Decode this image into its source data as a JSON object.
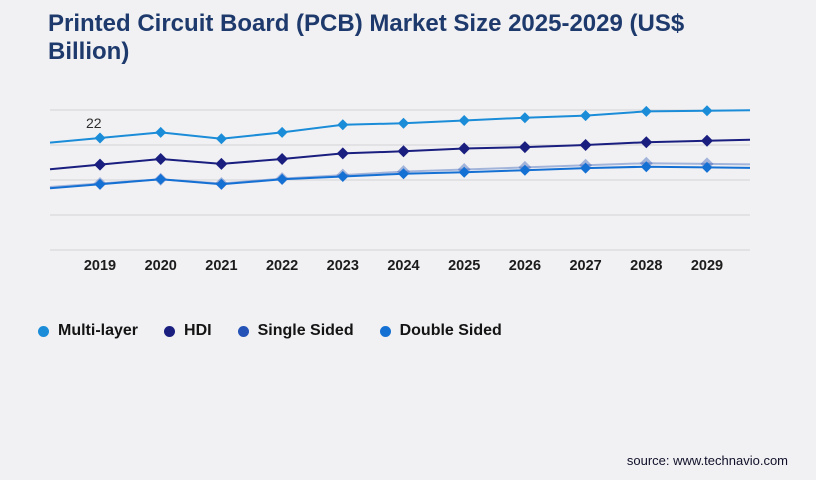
{
  "header": {
    "title_lines": [
      "Printed Circuit Board (PCB) Market Size 2025-2029 (US$",
      "Billion)"
    ]
  },
  "chart_data": {
    "type": "line",
    "title": "Printed Circuit Board (PCB) Market Size 2025-2029 (US$ Billion)",
    "x": [
      "2019",
      "2020",
      "2021",
      "2022",
      "2023",
      "2024",
      "2025",
      "2026",
      "2027",
      "2028",
      "2029"
    ],
    "series": [
      {
        "name": "Multi-layer",
        "color": "#1a8cd8",
        "opacity": 1,
        "values": [
          22,
          22.8,
          21.9,
          22.8,
          23.9,
          24.1,
          24.5,
          24.9,
          25.2,
          25.8,
          25.9
        ]
      },
      {
        "name": "HDI",
        "color": "#1a1e7f",
        "opacity": 1,
        "values": [
          18.2,
          19.0,
          18.3,
          19.0,
          19.8,
          20.1,
          20.5,
          20.7,
          21.0,
          21.4,
          21.6
        ]
      },
      {
        "name": "Single Sided",
        "color": "#2452b6",
        "opacity": 0.38,
        "values": [
          15.5,
          16.1,
          15.5,
          16.2,
          16.7,
          17.2,
          17.5,
          17.8,
          18.1,
          18.4,
          18.3
        ]
      },
      {
        "name": "Double Sided",
        "color": "#1570d4",
        "opacity": 1,
        "values": [
          15.4,
          16.1,
          15.4,
          16.1,
          16.5,
          16.9,
          17.1,
          17.4,
          17.7,
          17.9,
          17.8
        ]
      }
    ],
    "annotations": [
      {
        "text": "22",
        "series": "Multi-layer",
        "x": "2019"
      }
    ],
    "ylim": [
      6,
      26
    ],
    "gridline_values": [
      26,
      21,
      16,
      11,
      6
    ],
    "grid": "horizontal-only",
    "y_axis_labels_shown": false,
    "legend_position": "bottom",
    "marker_shape": "diamond",
    "units": "US$ Billion"
  },
  "legend": {
    "items": [
      {
        "label": "Multi-layer",
        "color": "#1a8cd8"
      },
      {
        "label": "HDI",
        "color": "#1a1e7f"
      },
      {
        "label": "Single Sided",
        "color": "#2452b6"
      },
      {
        "label": "Double Sided",
        "color": "#1570d4"
      }
    ]
  },
  "footer": {
    "source_label": "source: www.technavio.com"
  },
  "colors": {
    "page_background": "#f1f1f3",
    "title_text": "#1e3a6d",
    "gridline": "#d2d2d6",
    "axis_label_text": "#1c1c1c",
    "annotation_text": "#2d2d2d",
    "source_text": "#10102a"
  }
}
